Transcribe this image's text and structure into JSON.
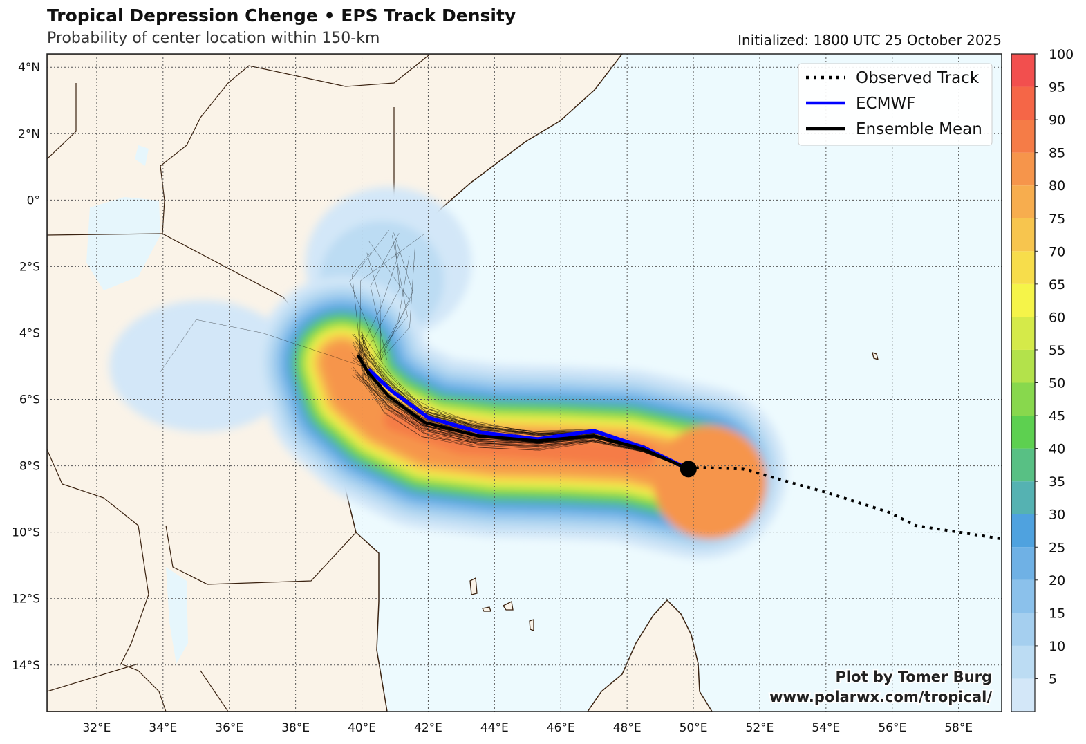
{
  "header": {
    "title": "Tropical Depression Chenge • EPS Track Density",
    "subtitle": "Probability of center location within 150-km",
    "initialized": "Initialized: 1800 UTC 25 October 2025"
  },
  "credit": {
    "line1": "Plot by Tomer Burg",
    "line2": "www.polarwx.com/tropical/"
  },
  "chart_data": {
    "type": "map",
    "extent": {
      "lon": [
        30.5,
        59.3
      ],
      "lat": [
        -15.4,
        4.4
      ]
    },
    "x_ticks": [
      {
        "value": 32,
        "label": "32°E"
      },
      {
        "value": 34,
        "label": "34°E"
      },
      {
        "value": 36,
        "label": "36°E"
      },
      {
        "value": 38,
        "label": "38°E"
      },
      {
        "value": 40,
        "label": "40°E"
      },
      {
        "value": 42,
        "label": "42°E"
      },
      {
        "value": 44,
        "label": "44°E"
      },
      {
        "value": 46,
        "label": "46°E"
      },
      {
        "value": 48,
        "label": "48°E"
      },
      {
        "value": 50,
        "label": "50°E"
      },
      {
        "value": 52,
        "label": "52°E"
      },
      {
        "value": 54,
        "label": "54°E"
      },
      {
        "value": 56,
        "label": "56°E"
      },
      {
        "value": 58,
        "label": "58°E"
      }
    ],
    "y_ticks": [
      {
        "value": 4,
        "label": "4°N"
      },
      {
        "value": 2,
        "label": "2°N"
      },
      {
        "value": 0,
        "label": "0°"
      },
      {
        "value": -2,
        "label": "2°S"
      },
      {
        "value": -4,
        "label": "4°S"
      },
      {
        "value": -6,
        "label": "6°S"
      },
      {
        "value": -8,
        "label": "8°S"
      },
      {
        "value": -10,
        "label": "10°S"
      },
      {
        "value": -12,
        "label": "12°S"
      },
      {
        "value": -14,
        "label": "14°S"
      }
    ],
    "legend": {
      "placement": "top-right",
      "entries": [
        {
          "label": "Observed Track",
          "color": "#000000",
          "style": "dotted"
        },
        {
          "label": "ECMWF",
          "color": "#0000ff",
          "style": "solid"
        },
        {
          "label": "Ensemble Mean",
          "color": "#000000",
          "style": "solid"
        }
      ]
    },
    "colorbar": {
      "range": [
        0,
        100
      ],
      "step": 5,
      "tick_labels": [
        "5",
        "10",
        "15",
        "20",
        "25",
        "30",
        "35",
        "40",
        "45",
        "50",
        "55",
        "60",
        "65",
        "70",
        "75",
        "80",
        "85",
        "90",
        "95",
        "100"
      ],
      "colors": [
        "#d3e7f8",
        "#bcdcf3",
        "#a5cfef",
        "#8bc1eb",
        "#6fb1e5",
        "#4fa2df",
        "#55b2b2",
        "#58c084",
        "#5dd050",
        "#88d84d",
        "#b3e24b",
        "#d5ea49",
        "#f5f449",
        "#f7dd4b",
        "#f7c54e",
        "#f7ad4e",
        "#f6954b",
        "#f57c47",
        "#f56647",
        "#f24f4e"
      ]
    },
    "series": {
      "observed_track": {
        "lon": [
          49.85,
          50.2,
          51.5,
          54.0,
          55.9,
          56.7,
          59.3
        ],
        "lat": [
          -8.1,
          -8.05,
          -8.1,
          -8.8,
          -9.4,
          -9.8,
          -10.2
        ]
      },
      "ecmwf": {
        "lon": [
          49.85,
          48.5,
          47.0,
          45.3,
          43.6,
          42.0,
          40.9,
          40.2
        ],
        "lat": [
          -8.1,
          -7.45,
          -6.95,
          -7.2,
          -7.0,
          -6.55,
          -5.75,
          -5.1
        ]
      },
      "ensemble_mean": {
        "lon": [
          49.85,
          48.5,
          47.0,
          45.3,
          43.5,
          41.9,
          40.8,
          40.2,
          39.875
        ],
        "lat": [
          -8.1,
          -7.5,
          -7.1,
          -7.25,
          -7.1,
          -6.7,
          -5.9,
          -5.2,
          -4.67
        ]
      },
      "current_position": {
        "lon": 49.85,
        "lat": -8.1
      }
    }
  }
}
